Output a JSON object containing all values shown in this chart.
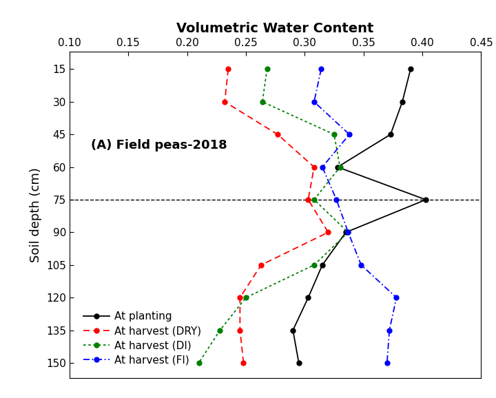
{
  "title": "Volumetric Water Content",
  "ylabel": "Soil depth (cm)",
  "annotation": "(A) Field peas-2018",
  "depths": [
    15,
    30,
    45,
    60,
    75,
    90,
    105,
    120,
    135,
    150
  ],
  "xlim": [
    0.1,
    0.45
  ],
  "xticks": [
    0.1,
    0.15,
    0.2,
    0.25,
    0.3,
    0.35,
    0.4,
    0.45
  ],
  "ylim": [
    157,
    7
  ],
  "yticks": [
    15,
    30,
    45,
    60,
    75,
    90,
    105,
    120,
    135,
    150
  ],
  "dashed_hline": 75,
  "series": {
    "At planting": {
      "color": "#000000",
      "linestyle": "-",
      "values": [
        0.39,
        0.383,
        0.373,
        0.328,
        0.403,
        0.335,
        0.315,
        0.303,
        0.29,
        0.295
      ]
    },
    "At harvest (DRY)": {
      "color": "#ff0000",
      "linestyle": "--",
      "values": [
        0.235,
        0.232,
        0.277,
        0.308,
        0.303,
        0.32,
        0.263,
        0.245,
        0.245,
        0.248
      ]
    },
    "At harvest (DI)": {
      "color": "#008000",
      "linestyle": "--",
      "dotted": true,
      "values": [
        0.268,
        0.264,
        0.325,
        0.33,
        0.308,
        0.337,
        0.308,
        0.25,
        0.228,
        0.21
      ]
    },
    "At harvest (FI)": {
      "color": "#0000ff",
      "linestyle": "--",
      "dotted": true,
      "values": [
        0.314,
        0.308,
        0.338,
        0.315,
        0.327,
        0.337,
        0.348,
        0.378,
        0.372,
        0.37
      ]
    }
  },
  "legend_order": [
    "At planting",
    "At harvest (DRY)",
    "At harvest (DI)",
    "At harvest (FI)"
  ],
  "background_color": "#ffffff",
  "title_fontsize": 14,
  "label_fontsize": 13,
  "tick_fontsize": 11,
  "legend_fontsize": 11,
  "annotation_fontsize": 13
}
